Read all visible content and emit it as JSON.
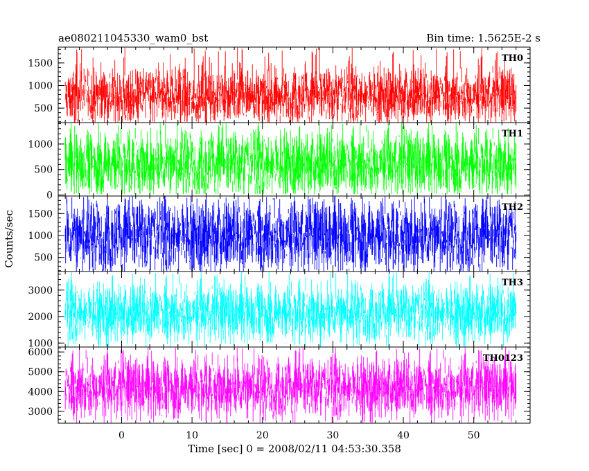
{
  "header": {
    "title": "ae080211045330_wam0_bst",
    "bin_time": "Bin time: 1.5625E-2 s"
  },
  "chart_data": {
    "type": "line",
    "title": "ae080211045330_wam0_bst",
    "xlabel": "Time [sec] 0 = 2008/02/11 04:53:30.358",
    "ylabel": "Counts/sec",
    "xlim": [
      -9,
      58
    ],
    "x_range_data": [
      -8,
      56
    ],
    "x_ticks": [
      0,
      10,
      20,
      30,
      40,
      50
    ],
    "bin_time_s": 0.015625,
    "grid": false,
    "panels": [
      {
        "name": "TH0",
        "color": "#ff0000",
        "ylim": [
          180,
          1850
        ],
        "y_ticks": [
          500,
          1000,
          1500
        ],
        "y_data_range": [
          180,
          1850
        ],
        "typical_band": [
          420,
          1150
        ]
      },
      {
        "name": "TH1",
        "color": "#00ff00",
        "ylim": [
          -20,
          1420
        ],
        "y_ticks": [
          0,
          500,
          1000
        ],
        "y_data_range": [
          20,
          1420
        ],
        "typical_band": [
          230,
          1000
        ]
      },
      {
        "name": "TH2",
        "color": "#0000ff",
        "ylim": [
          180,
          1900
        ],
        "y_ticks": [
          500,
          1000,
          1500
        ],
        "y_data_range": [
          180,
          1900
        ],
        "typical_band": [
          500,
          1500
        ]
      },
      {
        "name": "TH3",
        "color": "#00ffff",
        "ylim": [
          850,
          3700
        ],
        "y_ticks": [
          1000,
          2000,
          3000
        ],
        "y_data_range": [
          850,
          3700
        ],
        "typical_band": [
          1500,
          2800
        ]
      },
      {
        "name": "TH0123",
        "color": "#ff00ff",
        "ylim": [
          2400,
          6250
        ],
        "y_ticks": [
          3000,
          4000,
          5000,
          6000
        ],
        "y_data_range": [
          2400,
          6250
        ],
        "typical_band": [
          3300,
          5100
        ]
      }
    ]
  }
}
